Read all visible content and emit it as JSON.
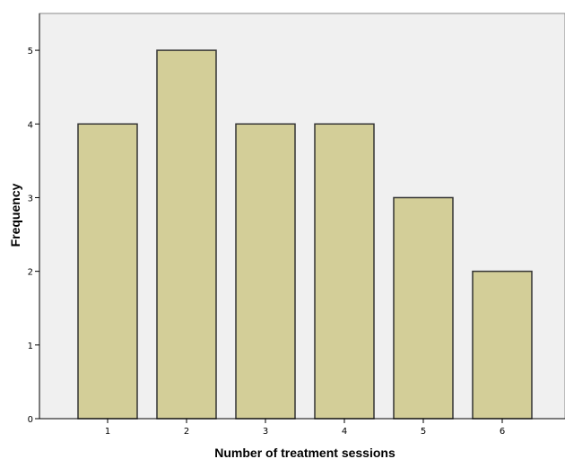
{
  "chart_data": {
    "type": "bar",
    "categories": [
      "1",
      "2",
      "3",
      "4",
      "5",
      "6"
    ],
    "values": [
      4,
      5,
      4,
      4,
      3,
      2
    ],
    "xlabel": "Number of treatment sessions",
    "ylabel": "Frequency",
    "ylim": [
      0,
      5.5
    ],
    "yticks": [
      0,
      1,
      2,
      3,
      4,
      5
    ],
    "grid": false,
    "bar_color": "#d3ce98",
    "bar_stroke": "#333333",
    "plot_background": "#f0f0f0"
  }
}
